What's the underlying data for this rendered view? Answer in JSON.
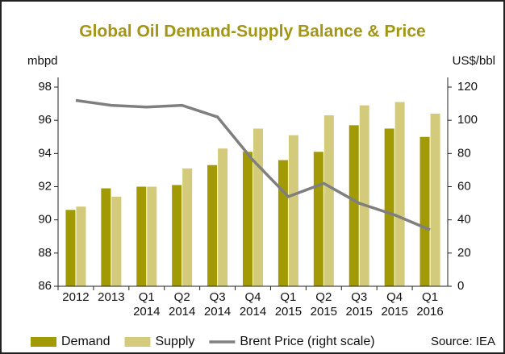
{
  "chart_data": {
    "type": "bar",
    "title": "Global Oil Demand-Supply Balance & Price",
    "y_label": "mbpd",
    "y2_label": "US$/bbl",
    "source": "Source: IEA",
    "categories": [
      "2012",
      "2013",
      "Q1 2014",
      "Q2 2014",
      "Q3 2014",
      "Q4 2014",
      "Q1 2015",
      "Q2 2015",
      "Q3 2015",
      "Q4 2015",
      "Q1 2016"
    ],
    "series": [
      {
        "name": "Demand",
        "type": "bar",
        "color": "#a19a05",
        "values": [
          90.6,
          91.9,
          92.0,
          92.1,
          93.3,
          94.1,
          93.6,
          94.1,
          95.7,
          95.5,
          95.0
        ]
      },
      {
        "name": "Supply",
        "type": "bar",
        "color": "#d3cb7b",
        "values": [
          90.8,
          91.4,
          92.0,
          93.1,
          94.3,
          95.5,
          95.1,
          96.3,
          96.9,
          97.1,
          96.4
        ]
      },
      {
        "name": "Brent Price (right scale)",
        "type": "line",
        "axis": "y2",
        "color": "#7f7f7f",
        "values": [
          112,
          109,
          108,
          109,
          102,
          76,
          54,
          62,
          50,
          43,
          34
        ]
      }
    ],
    "ylim": [
      86,
      98
    ],
    "yticks": [
      86,
      88,
      90,
      92,
      94,
      96,
      98
    ],
    "y2lim": [
      0,
      120
    ],
    "y2ticks": [
      0,
      20,
      40,
      60,
      80,
      100,
      120
    ]
  }
}
